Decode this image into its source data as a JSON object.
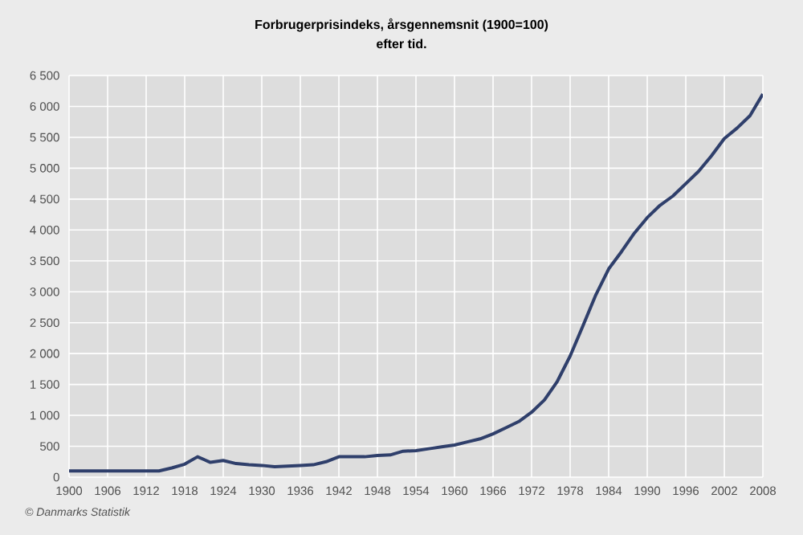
{
  "chart_data": {
    "type": "line",
    "title": "Forbrugerprisindeks, årsgennemsnit (1900=100)",
    "subtitle": "efter tid.",
    "annotations": [
      "© Danmarks Statistik"
    ],
    "x": [
      1900,
      1905,
      1910,
      1914,
      1916,
      1918,
      1920,
      1922,
      1924,
      1926,
      1928,
      1930,
      1932,
      1934,
      1936,
      1938,
      1940,
      1942,
      1944,
      1946,
      1948,
      1950,
      1952,
      1954,
      1956,
      1958,
      1960,
      1962,
      1964,
      1966,
      1968,
      1970,
      1972,
      1974,
      1976,
      1978,
      1980,
      1982,
      1984,
      1986,
      1988,
      1990,
      1992,
      1994,
      1996,
      1998,
      2000,
      2002,
      2004,
      2006,
      2008
    ],
    "series": [
      {
        "color": "#2f3f6b",
        "values": [
          100,
          100,
          100,
          100,
          150,
          210,
          330,
          240,
          270,
          220,
          200,
          190,
          170,
          180,
          190,
          200,
          250,
          330,
          330,
          330,
          350,
          360,
          420,
          430,
          460,
          490,
          520,
          570,
          620,
          700,
          800,
          900,
          1050,
          1250,
          1550,
          1960,
          2450,
          2950,
          3370,
          3650,
          3950,
          4200,
          4400,
          4550,
          4750,
          4950,
          5200,
          5480,
          5650,
          5850,
          6200
        ]
      }
    ],
    "xlim": [
      1900,
      2008
    ],
    "xticks": [
      1900,
      1906,
      1912,
      1918,
      1924,
      1930,
      1936,
      1942,
      1948,
      1954,
      1960,
      1966,
      1972,
      1978,
      1984,
      1990,
      1996,
      2002,
      2008
    ],
    "ylim": [
      0,
      6500
    ],
    "yticks": [
      {
        "value": 0,
        "label": "0"
      },
      {
        "value": 500,
        "label": "500"
      },
      {
        "value": 1000,
        "label": "1 000"
      },
      {
        "value": 1500,
        "label": "1 500"
      },
      {
        "value": 2000,
        "label": "2 000"
      },
      {
        "value": 2500,
        "label": "2 500"
      },
      {
        "value": 3000,
        "label": "3 000"
      },
      {
        "value": 3500,
        "label": "3 500"
      },
      {
        "value": 4000,
        "label": "4 000"
      },
      {
        "value": 4500,
        "label": "4 500"
      },
      {
        "value": 5000,
        "label": "5 000"
      },
      {
        "value": 5500,
        "label": "5 500"
      },
      {
        "value": 6000,
        "label": "6 000"
      },
      {
        "value": 6500,
        "label": "6 500"
      }
    ],
    "grid": true,
    "marker": "none",
    "line_style": "solid"
  }
}
